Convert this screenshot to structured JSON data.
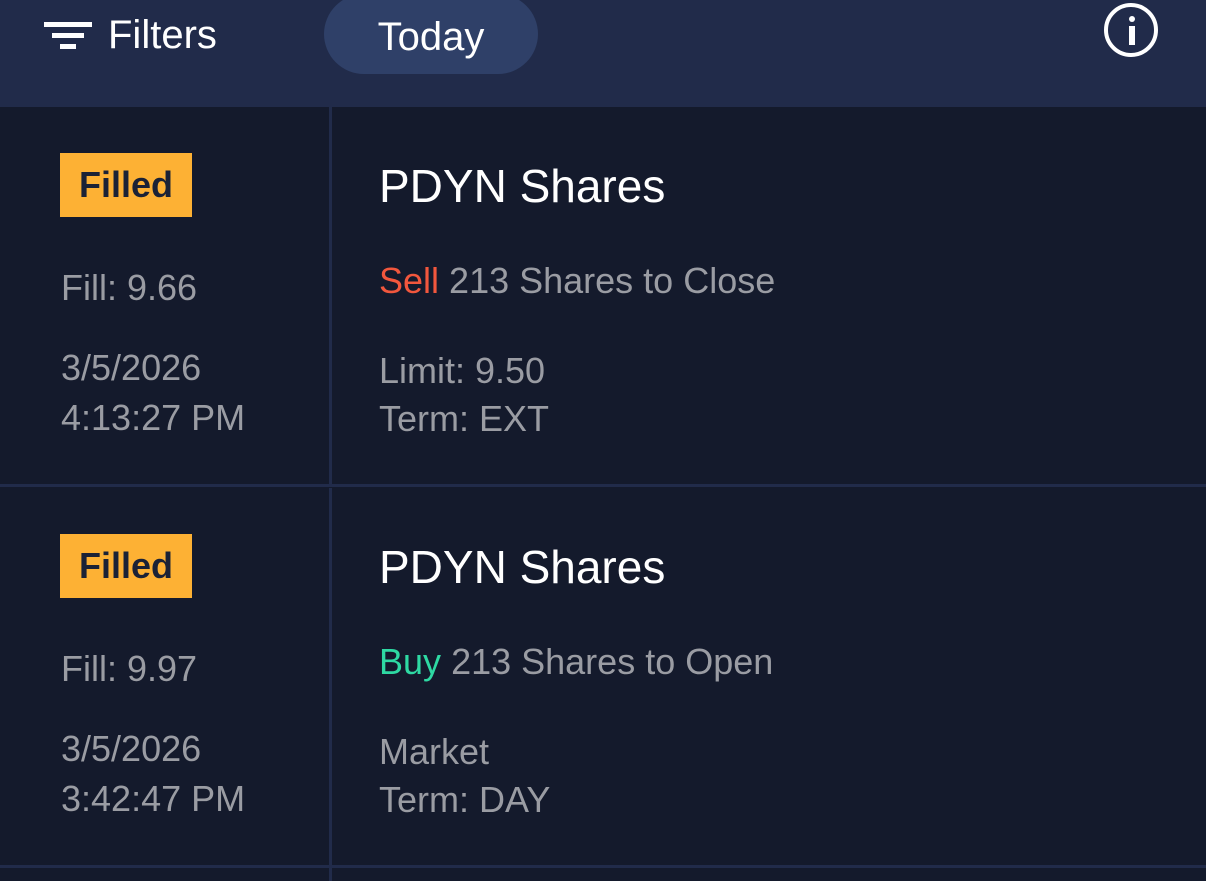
{
  "header": {
    "filters_label": "Filters",
    "period_label": "Today",
    "icons": [
      "filter-icon",
      "info-icon"
    ]
  },
  "colors": {
    "filled_badge": "#fdb134",
    "sell": "#f2573d",
    "buy": "#2ed9a3",
    "header_bg": "#212b4a",
    "row_bg": "#141a2c"
  },
  "orders": [
    {
      "status": "Filled",
      "fill": "Fill: 9.66",
      "date": "3/5/2026",
      "time": "4:13:27 PM",
      "title": "PDYN Shares",
      "side": "Sell",
      "description": "213 Shares to Close",
      "price": "Limit: 9.50",
      "term": "Term: EXT"
    },
    {
      "status": "Filled",
      "fill": "Fill: 9.97",
      "date": "3/5/2026",
      "time": "3:42:47 PM",
      "title": "PDYN Shares",
      "side": "Buy",
      "description": "213 Shares to Open",
      "price": "Market",
      "term": "Term: DAY"
    }
  ]
}
